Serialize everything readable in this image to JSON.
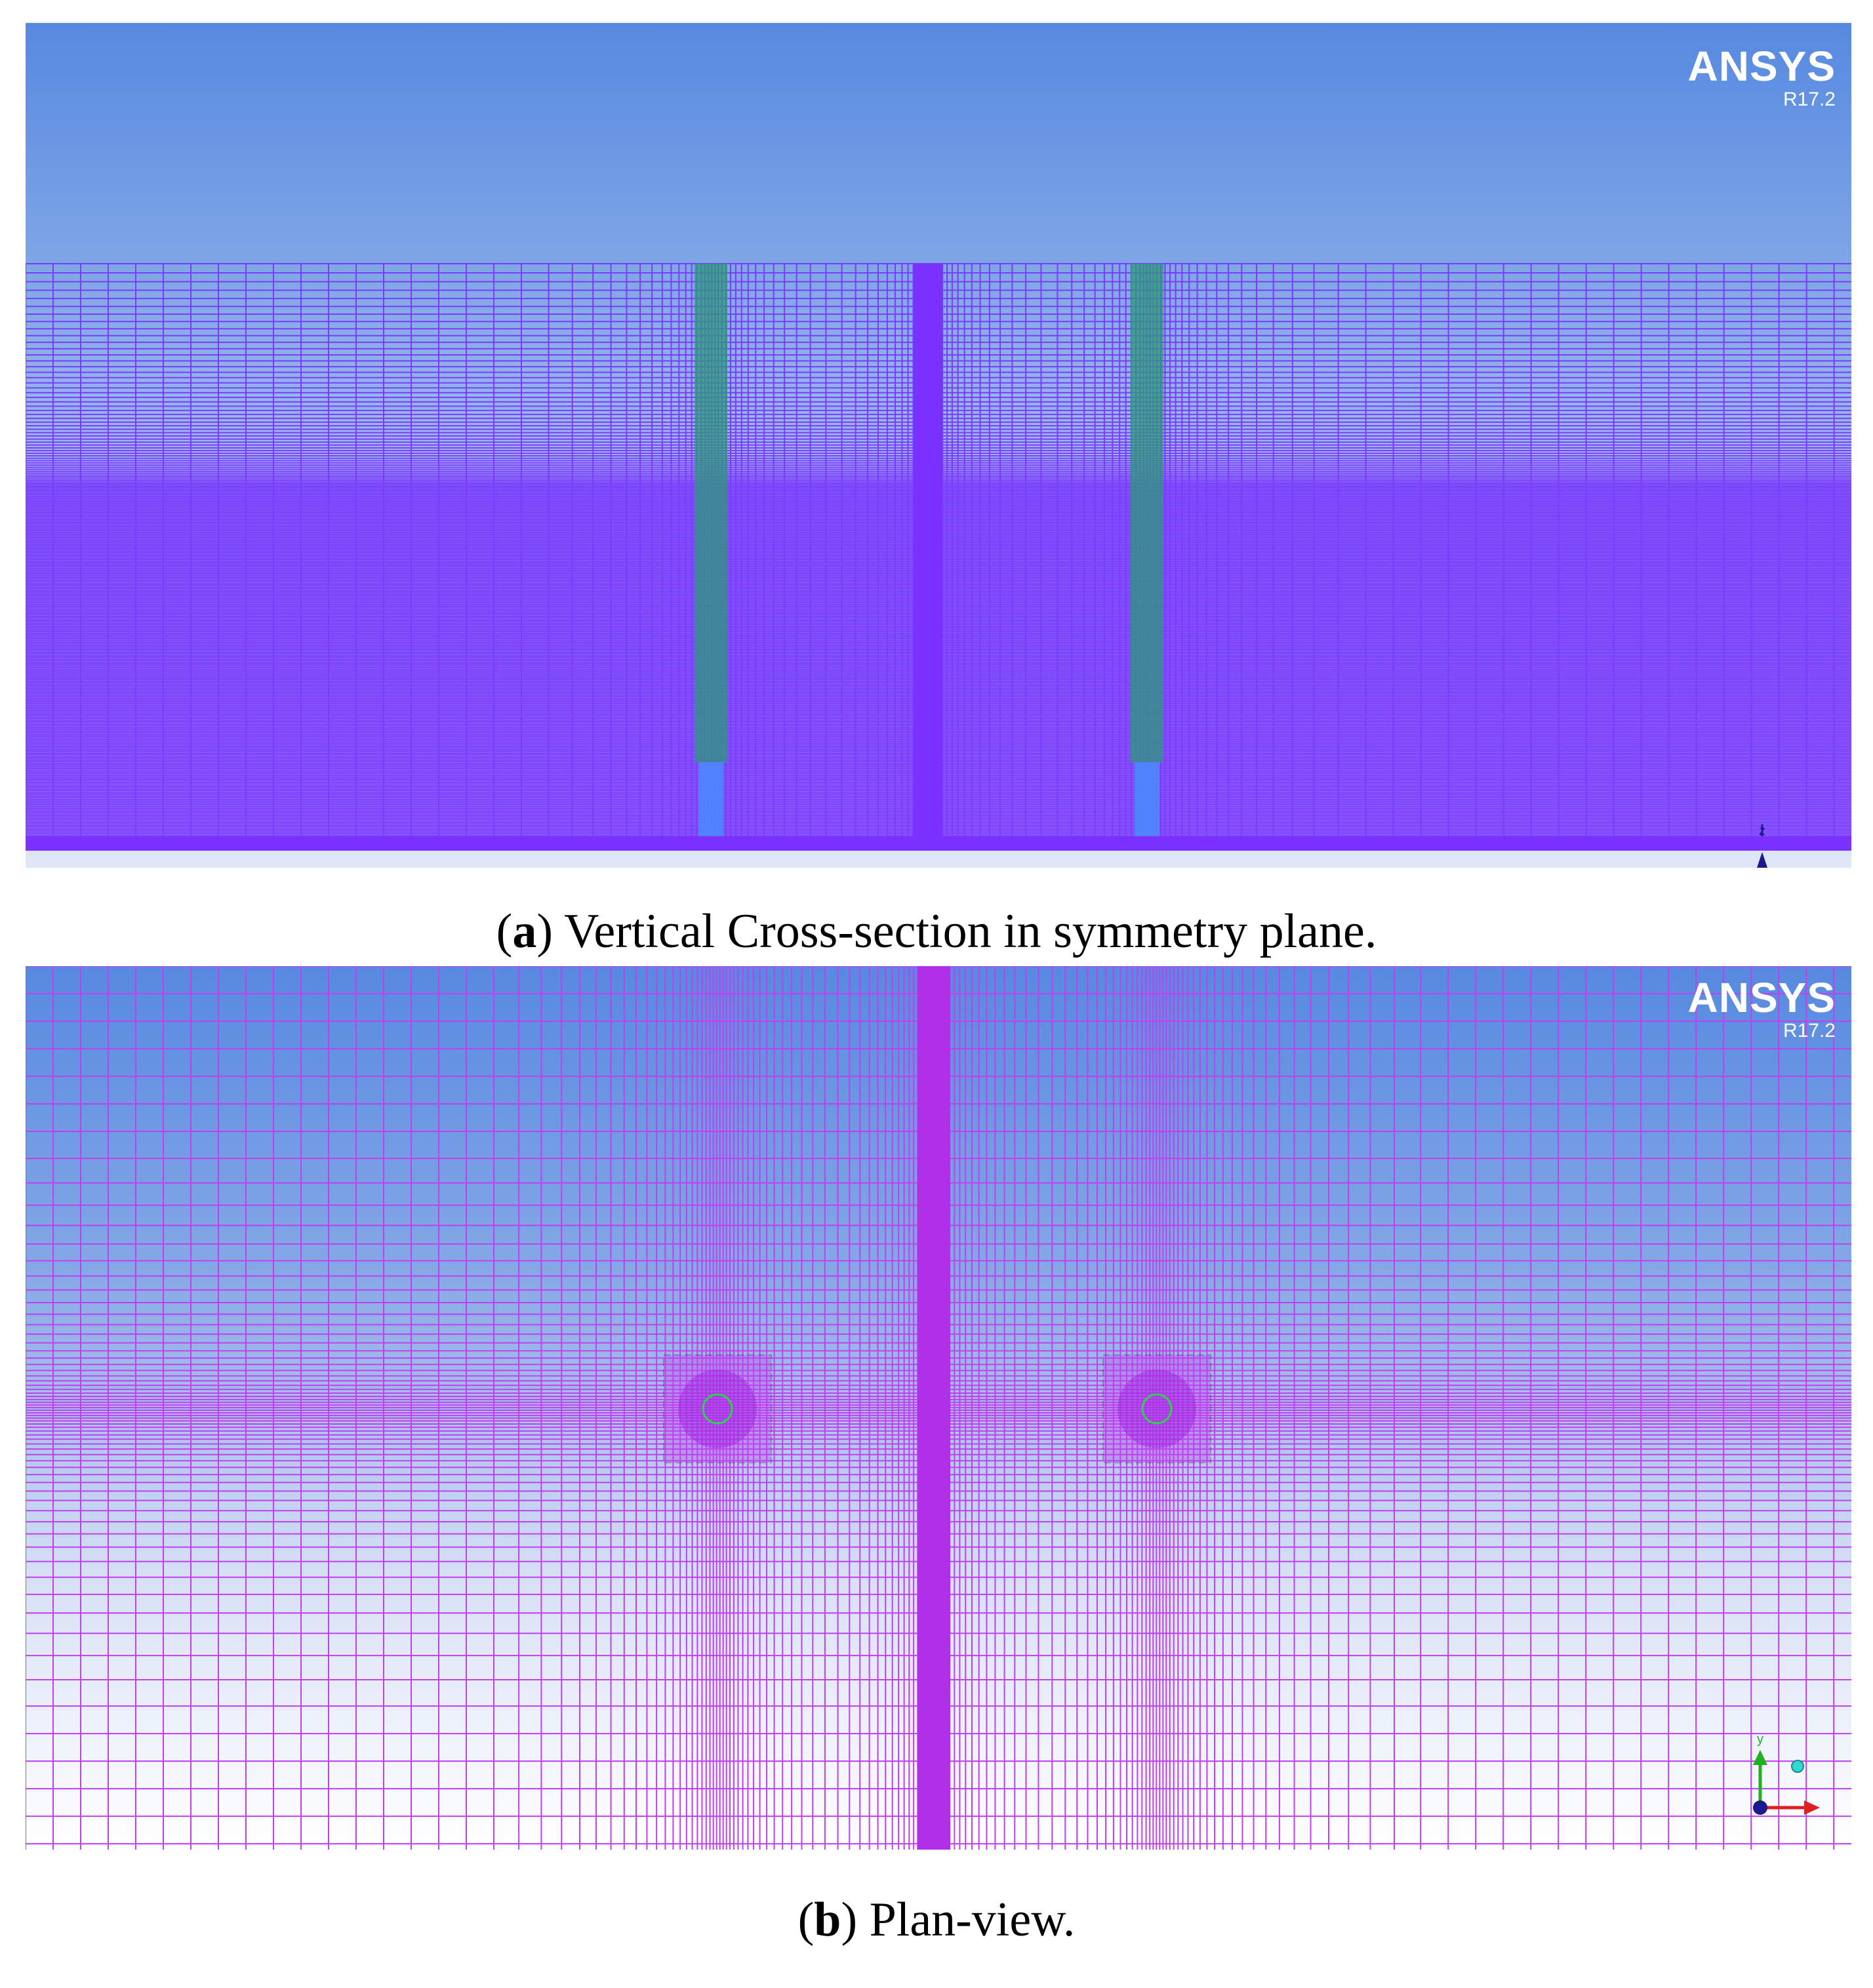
{
  "panel_a": {
    "logo": "ANSYS",
    "version": "R17.2",
    "axis_label": "z",
    "caption_letter": "a",
    "caption_text": "Vertical Cross-section in symmetry plane."
  },
  "panel_b": {
    "logo": "ANSYS",
    "version": "R17.2",
    "axis_label": "y",
    "caption_letter": "b",
    "caption_text": "Plan-view."
  },
  "colors": {
    "mesh_a": "#7a3cff",
    "mesh_b": "#c040f0",
    "pile": "#2e9a7a",
    "centre_strip_a": "#7a30ff",
    "centre_strip_b": "#b030e8",
    "axis_x": "#e02020",
    "axis_y": "#20b020",
    "axis_z": "#1a1a8c"
  }
}
